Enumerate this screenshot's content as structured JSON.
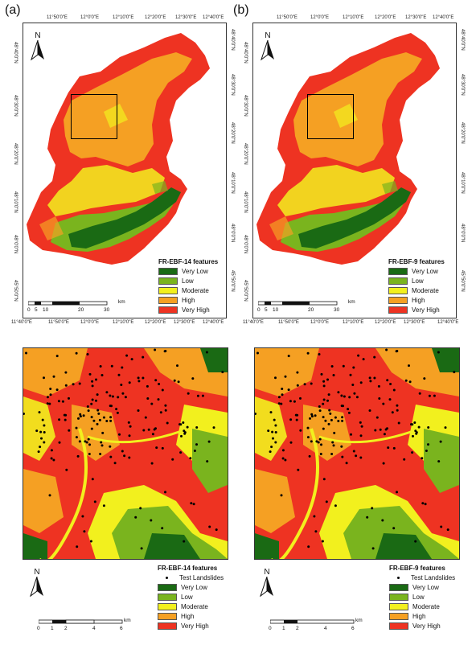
{
  "panels": [
    {
      "label": "(a)",
      "overview_legend_title": "FR-EBF-14 features",
      "detail_legend_title": "FR-EBF-14 features"
    },
    {
      "label": "(b)",
      "overview_legend_title": "FR-EBF-9 features",
      "detail_legend_title": "FR-EBF-9 features"
    }
  ],
  "classes": [
    {
      "label": "Very Low",
      "color": "#1a6a14"
    },
    {
      "label": "Low",
      "color": "#7ab41e"
    },
    {
      "label": "Moderate",
      "color": "#f2f01e"
    },
    {
      "label": "High",
      "color": "#f5a023"
    },
    {
      "label": "Very High",
      "color": "#ee3322"
    }
  ],
  "points_label": "Test Landslides",
  "north_label": "N",
  "graticule": {
    "top": [
      "11°50'0\"E",
      "12°0'0\"E",
      "12°10'0\"E",
      "12°20'0\"E",
      "12°30'0\"E",
      "12°40'0\"E"
    ],
    "bottom": [
      "11°40'0\"E",
      "11°50'0\"E",
      "12°0'0\"E",
      "12°10'0\"E",
      "12°20'0\"E",
      "12°30'0\"E",
      "12°40'0\"E"
    ],
    "left": [
      "48°40'0\"N",
      "48°30'0\"N",
      "48°20'0\"N",
      "48°10'0\"N",
      "48°0'0\"N",
      "45°50'0\"N"
    ],
    "right": [
      "48°40'0\"N",
      "48°30'0\"N",
      "48°20'0\"N",
      "48°10'0\"N",
      "48°0'0\"N",
      "45°50'0\"N"
    ]
  },
  "overview_scale": {
    "ticks": [
      "0",
      "5",
      "10",
      "20",
      "30"
    ],
    "unit": "km"
  },
  "detail_scale": {
    "ticks": [
      "0",
      "1",
      "2",
      "4",
      "6"
    ],
    "unit": "km"
  }
}
